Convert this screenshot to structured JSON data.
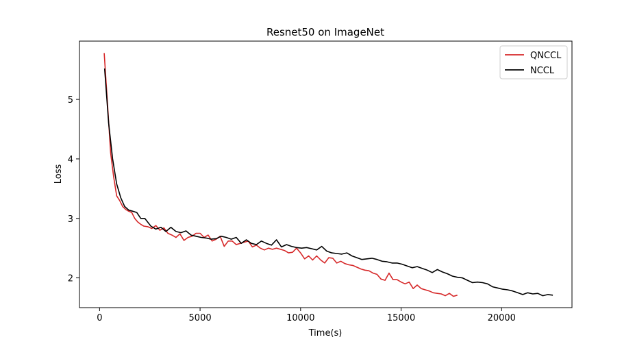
{
  "chart_data": {
    "type": "line",
    "title": "Resnet50 on ImageNet",
    "xlabel": "Time(s)",
    "ylabel": "Loss",
    "xlim": [
      -1000,
      23500
    ],
    "ylim": [
      1.5,
      5.98
    ],
    "xticks": [
      0,
      5000,
      10000,
      15000,
      20000
    ],
    "yticks": [
      2,
      3,
      4,
      5
    ],
    "grid": false,
    "legend_position": "top-right",
    "series": [
      {
        "name": "QNCCL",
        "color": "#d62728",
        "x": [
          230,
          400,
          550,
          700,
          850,
          1000,
          1150,
          1300,
          1450,
          1600,
          1750,
          1900,
          2050,
          2200,
          2400,
          2600,
          2800,
          3000,
          3200,
          3400,
          3600,
          3800,
          4000,
          4200,
          4400,
          4600,
          4800,
          5000,
          5200,
          5400,
          5600,
          5800,
          6000,
          6200,
          6400,
          6600,
          6800,
          7000,
          7200,
          7400,
          7600,
          7800,
          8000,
          8200,
          8400,
          8600,
          8800,
          9000,
          9200,
          9400,
          9600,
          9800,
          10000,
          10200,
          10400,
          10600,
          10800,
          11000,
          11200,
          11400,
          11600,
          11800,
          12000,
          12200,
          12400,
          12600,
          12800,
          13000,
          13200,
          13400,
          13600,
          13800,
          14000,
          14200,
          14400,
          14600,
          14800,
          15000,
          15200,
          15400,
          15600,
          15800,
          16000,
          16200,
          16400,
          16600,
          16800,
          17000,
          17200,
          17400,
          17600,
          17800
        ],
        "y": [
          5.78,
          4.9,
          4.1,
          3.7,
          3.38,
          3.3,
          3.2,
          3.15,
          3.12,
          3.1,
          3.0,
          2.94,
          2.9,
          2.87,
          2.86,
          2.83,
          2.88,
          2.8,
          2.84,
          2.75,
          2.72,
          2.68,
          2.74,
          2.63,
          2.68,
          2.7,
          2.75,
          2.75,
          2.68,
          2.72,
          2.62,
          2.65,
          2.7,
          2.53,
          2.62,
          2.62,
          2.56,
          2.58,
          2.6,
          2.62,
          2.52,
          2.55,
          2.5,
          2.47,
          2.5,
          2.48,
          2.5,
          2.48,
          2.46,
          2.42,
          2.43,
          2.5,
          2.42,
          2.32,
          2.37,
          2.3,
          2.37,
          2.3,
          2.25,
          2.34,
          2.33,
          2.25,
          2.28,
          2.24,
          2.22,
          2.21,
          2.18,
          2.15,
          2.13,
          2.12,
          2.08,
          2.06,
          1.98,
          1.96,
          2.08,
          1.97,
          1.97,
          1.93,
          1.9,
          1.93,
          1.82,
          1.88,
          1.82,
          1.8,
          1.78,
          1.75,
          1.74,
          1.73,
          1.7,
          1.74,
          1.69,
          1.71
        ]
      },
      {
        "name": "NCCL",
        "color": "#000000",
        "x": [
          250,
          450,
          650,
          850,
          1050,
          1250,
          1450,
          1650,
          1850,
          2050,
          2250,
          2550,
          2800,
          3050,
          3300,
          3550,
          3800,
          4050,
          4300,
          4550,
          4800,
          5050,
          5300,
          5550,
          5800,
          6050,
          6300,
          6550,
          6800,
          7050,
          7300,
          7550,
          7800,
          8050,
          8300,
          8550,
          8800,
          9050,
          9300,
          9550,
          9800,
          10050,
          10300,
          10550,
          10800,
          11050,
          11300,
          11550,
          11800,
          12050,
          12300,
          12550,
          12800,
          13050,
          13300,
          13550,
          13800,
          14050,
          14300,
          14550,
          14800,
          15050,
          15300,
          15550,
          15800,
          16050,
          16300,
          16550,
          16800,
          17050,
          17300,
          17550,
          17800,
          18050,
          18300,
          18550,
          18800,
          19050,
          19300,
          19550,
          19800,
          20050,
          20300,
          20550,
          20800,
          21050,
          21300,
          21550,
          21800,
          22050,
          22300,
          22550
        ],
        "y": [
          5.52,
          4.6,
          4.0,
          3.58,
          3.35,
          3.2,
          3.14,
          3.12,
          3.1,
          3.0,
          3.0,
          2.87,
          2.82,
          2.85,
          2.78,
          2.85,
          2.78,
          2.76,
          2.79,
          2.72,
          2.7,
          2.68,
          2.67,
          2.65,
          2.66,
          2.7,
          2.68,
          2.65,
          2.68,
          2.58,
          2.64,
          2.58,
          2.56,
          2.62,
          2.58,
          2.55,
          2.64,
          2.52,
          2.56,
          2.53,
          2.51,
          2.5,
          2.51,
          2.49,
          2.47,
          2.53,
          2.45,
          2.42,
          2.41,
          2.4,
          2.42,
          2.37,
          2.34,
          2.31,
          2.32,
          2.33,
          2.31,
          2.28,
          2.27,
          2.25,
          2.25,
          2.23,
          2.2,
          2.17,
          2.19,
          2.16,
          2.13,
          2.09,
          2.14,
          2.1,
          2.07,
          2.03,
          2.01,
          2.0,
          1.96,
          1.92,
          1.93,
          1.92,
          1.9,
          1.85,
          1.83,
          1.81,
          1.8,
          1.78,
          1.75,
          1.72,
          1.75,
          1.73,
          1.74,
          1.7,
          1.72,
          1.71
        ]
      }
    ]
  }
}
